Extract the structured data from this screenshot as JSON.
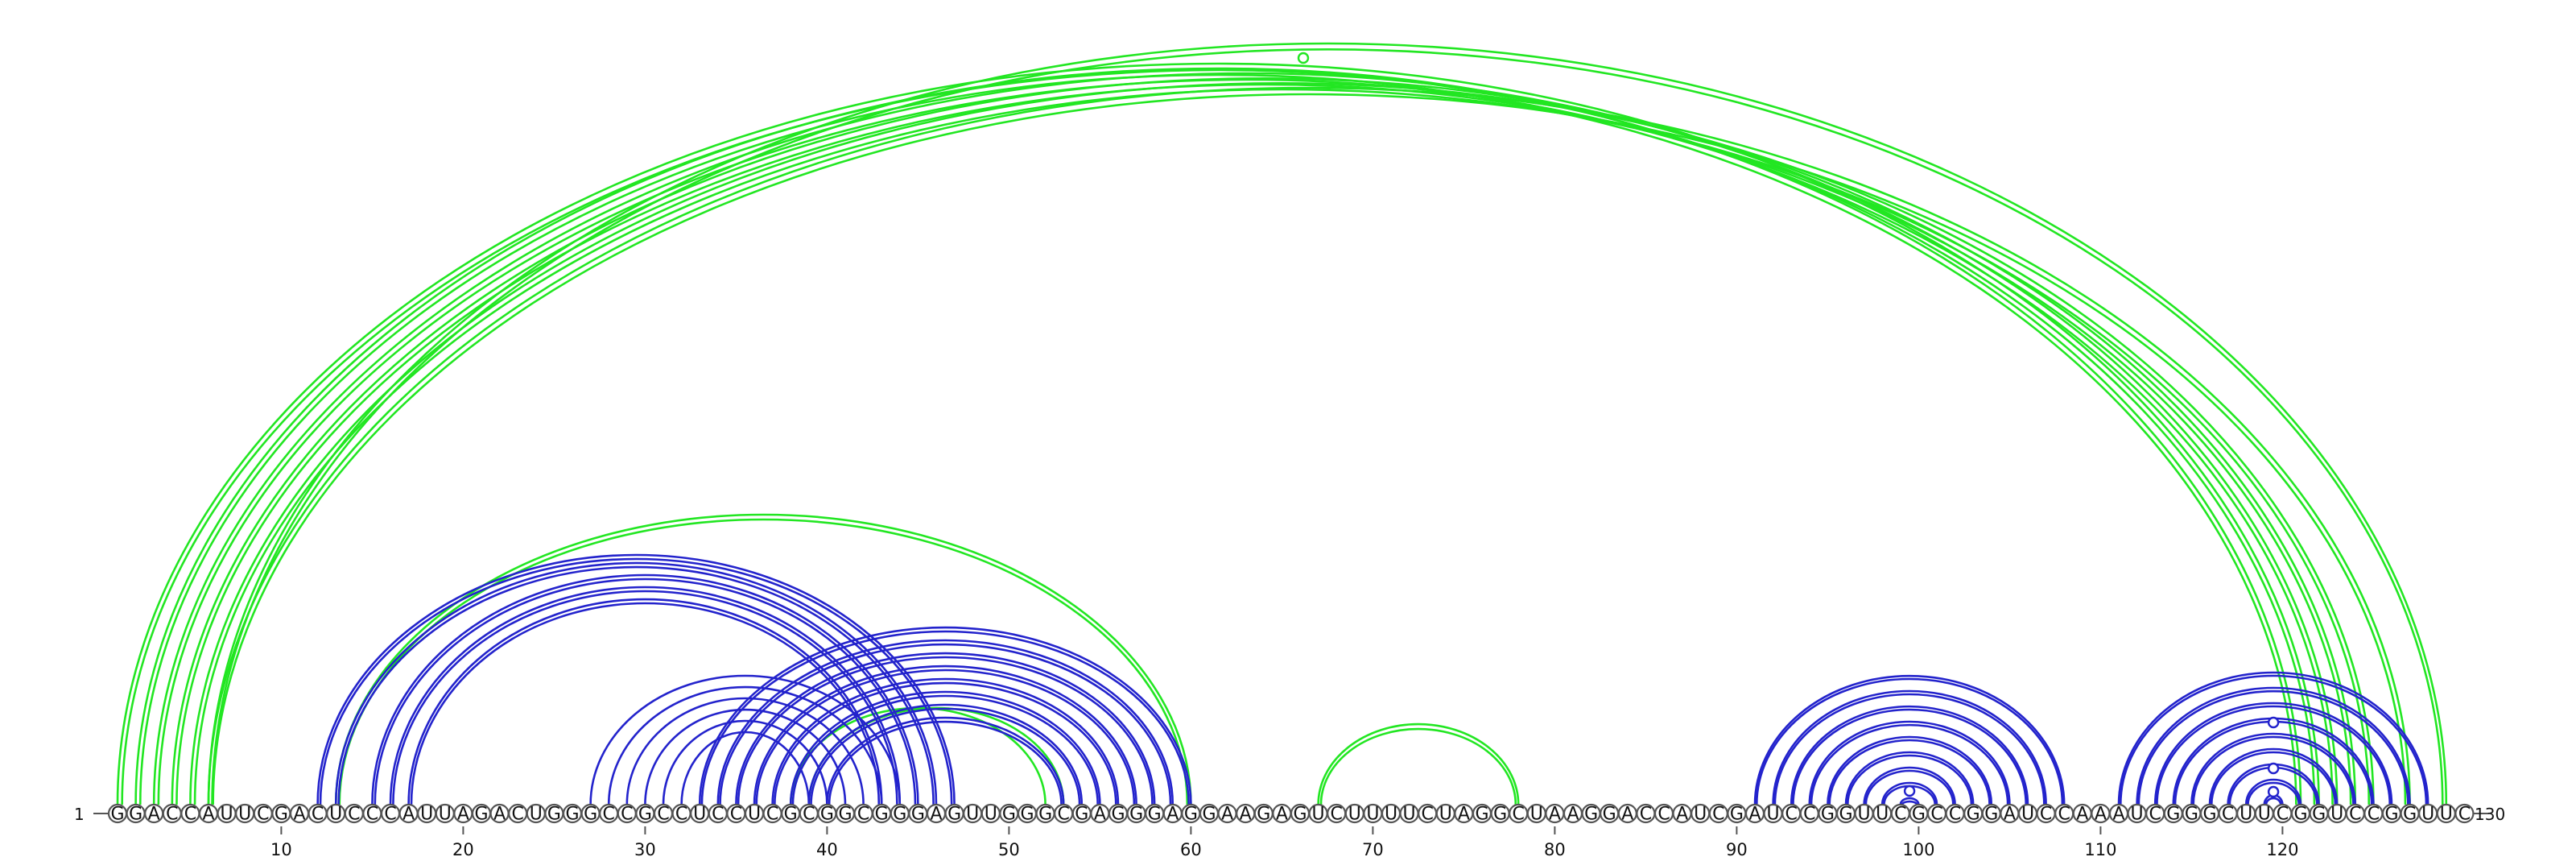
{
  "sequence": "GGACCAUUCGACUCCCAUUAGACUGGGCCGCCUCCUCGCGGCGGGAGUUGGGCGAGGGAGGAAGAGUCUUUUCUAGGCUAAGGACCAUCGAUCCGGUUCGCCGGAUCCAAAUCGGGCUUCGGUCCGGUUC",
  "start_label": "1",
  "end_label": "130",
  "ticks": [
    10,
    20,
    30,
    40,
    50,
    60,
    70,
    80,
    90,
    100,
    110,
    120
  ],
  "colors": {
    "green": "#22e622",
    "blue": "#2323cc"
  },
  "arcs": {
    "green_outer": [
      [
        1,
        122,
        2
      ],
      [
        2,
        121,
        2
      ],
      [
        3,
        123,
        2
      ],
      [
        4,
        124,
        2
      ],
      [
        5,
        125,
        2
      ],
      [
        6,
        127,
        2
      ],
      [
        66,
        66,
        0
      ]
    ],
    "green_right": [
      [
        6,
        129,
        2
      ]
    ],
    "green_long": [
      [
        13,
        60,
        1
      ]
    ],
    "green_inner": [
      [
        39,
        53,
        1
      ],
      [
        38,
        52,
        1
      ]
    ],
    "green_hairpin": [
      [
        67,
        78,
        1
      ]
    ],
    "blue_big": [
      [
        12,
        47,
        1
      ],
      [
        13,
        46,
        1
      ],
      [
        15,
        45,
        1
      ],
      [
        16,
        44,
        1
      ],
      [
        17,
        43,
        1
      ]
    ],
    "blue_stem2": [
      [
        27,
        44,
        1
      ],
      [
        28,
        43,
        1
      ],
      [
        29,
        42,
        1
      ],
      [
        30,
        41,
        1
      ],
      [
        31,
        40,
        1
      ],
      [
        32,
        39,
        1
      ]
    ],
    "blue_stem3": [
      [
        33,
        60,
        1
      ],
      [
        34,
        59,
        1
      ],
      [
        35,
        58,
        1
      ],
      [
        36,
        57,
        1
      ],
      [
        37,
        56,
        1
      ],
      [
        38,
        55,
        1
      ],
      [
        39,
        54,
        1
      ],
      [
        40,
        53,
        1
      ]
    ],
    "blue_right1": [
      [
        91,
        108,
        1
      ],
      [
        92,
        107,
        1
      ],
      [
        93,
        106,
        1
      ],
      [
        94,
        105,
        1
      ],
      [
        95,
        104,
        1
      ],
      [
        96,
        103,
        1
      ],
      [
        97,
        102,
        1
      ],
      [
        98,
        101,
        1
      ],
      [
        99,
        100,
        0
      ]
    ],
    "blue_right2": [
      [
        111,
        128,
        1
      ],
      [
        112,
        127,
        1
      ],
      [
        113,
        126,
        1
      ],
      [
        114,
        125,
        1
      ],
      [
        115,
        124,
        1
      ],
      [
        116,
        123,
        1
      ],
      [
        117,
        122,
        1
      ],
      [
        118,
        121,
        1
      ],
      [
        119,
        120,
        0
      ]
    ]
  }
}
